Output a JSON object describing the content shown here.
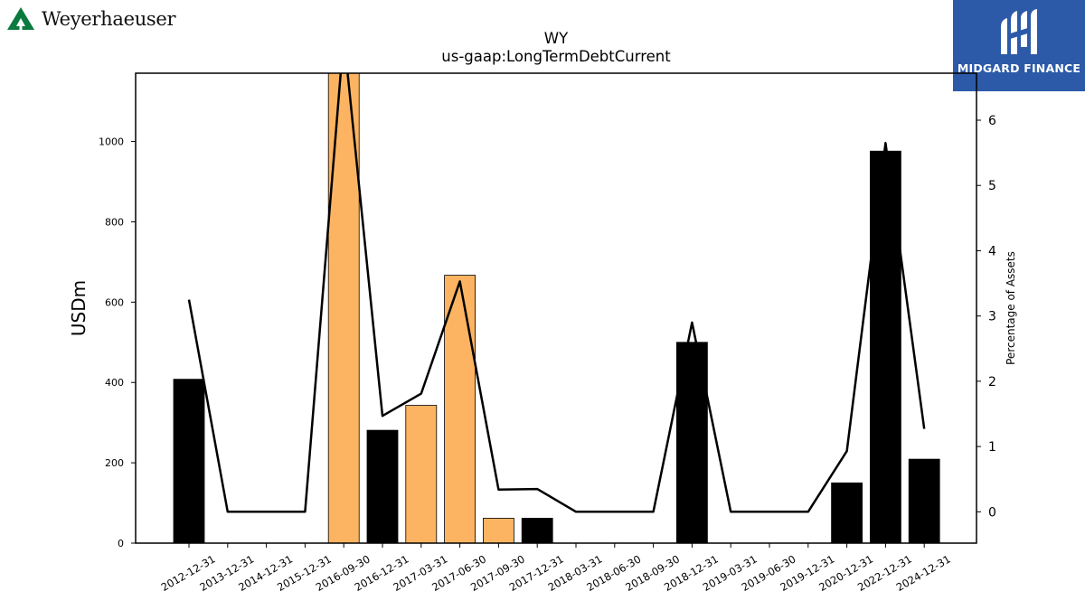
{
  "branding": {
    "left_logo_text": "Weyerhaeuser",
    "left_logo_icon": "weyerhaeuser-tree-icon",
    "left_logo_color": "#0b7a3e",
    "right_logo_text": "MIDGARD FINANCE",
    "right_logo_icon": "midgard-m-icon",
    "right_logo_bg": "#2c5aa8"
  },
  "chart_data": {
    "type": "bar",
    "title": "WY",
    "subtitle": "us-gaap:LongTermDebtCurrent",
    "ylabel": "USDm",
    "y2label": "Percentage of Assets",
    "categories": [
      "2012-12-31",
      "2013-12-31",
      "2014-12-31",
      "2015-12-31",
      "2016-09-30",
      "2016-12-31",
      "2017-03-31",
      "2017-06-30",
      "2017-09-30",
      "2017-12-31",
      "2018-03-31",
      "2018-06-30",
      "2018-09-30",
      "2018-12-31",
      "2019-03-31",
      "2019-06-30",
      "2019-12-31",
      "2020-12-31",
      "2022-12-31",
      "2024-12-31"
    ],
    "bars": [
      {
        "value": 408,
        "color": "#000000"
      },
      {
        "value": 0,
        "color": "#000000"
      },
      {
        "value": 0,
        "color": "#000000"
      },
      {
        "value": 0,
        "color": "#000000"
      },
      {
        "value": 1175,
        "color": "#fdb462"
      },
      {
        "value": 281,
        "color": "#000000"
      },
      {
        "value": 343,
        "color": "#fdb462"
      },
      {
        "value": 667,
        "color": "#fdb462"
      },
      {
        "value": 62,
        "color": "#fdb462"
      },
      {
        "value": 62,
        "color": "#000000"
      },
      {
        "value": 0,
        "color": "#000000"
      },
      {
        "value": 0,
        "color": "#000000"
      },
      {
        "value": 0,
        "color": "#000000"
      },
      {
        "value": 500,
        "color": "#000000"
      },
      {
        "value": 0,
        "color": "#000000"
      },
      {
        "value": 0,
        "color": "#000000"
      },
      {
        "value": 0,
        "color": "#000000"
      },
      {
        "value": 150,
        "color": "#000000"
      },
      {
        "value": 976,
        "color": "#000000"
      },
      {
        "value": 209,
        "color": "#000000"
      }
    ],
    "line_series": {
      "axis": "right",
      "color": "#000000",
      "values": [
        3.25,
        0.0,
        0.0,
        0.0,
        7.3,
        1.47,
        1.81,
        3.53,
        0.34,
        0.35,
        0.0,
        0.0,
        0.0,
        2.9,
        0.0,
        0.0,
        0.0,
        0.93,
        5.65,
        1.27
      ]
    },
    "ylim": [
      0,
      1170
    ],
    "y2lim": [
      -0.48,
      6.72
    ],
    "yticks": [
      0,
      200,
      400,
      600,
      800,
      1000
    ],
    "y2ticks": [
      0,
      1,
      2,
      3,
      4,
      5,
      6
    ],
    "grid": false,
    "legend": "none"
  }
}
